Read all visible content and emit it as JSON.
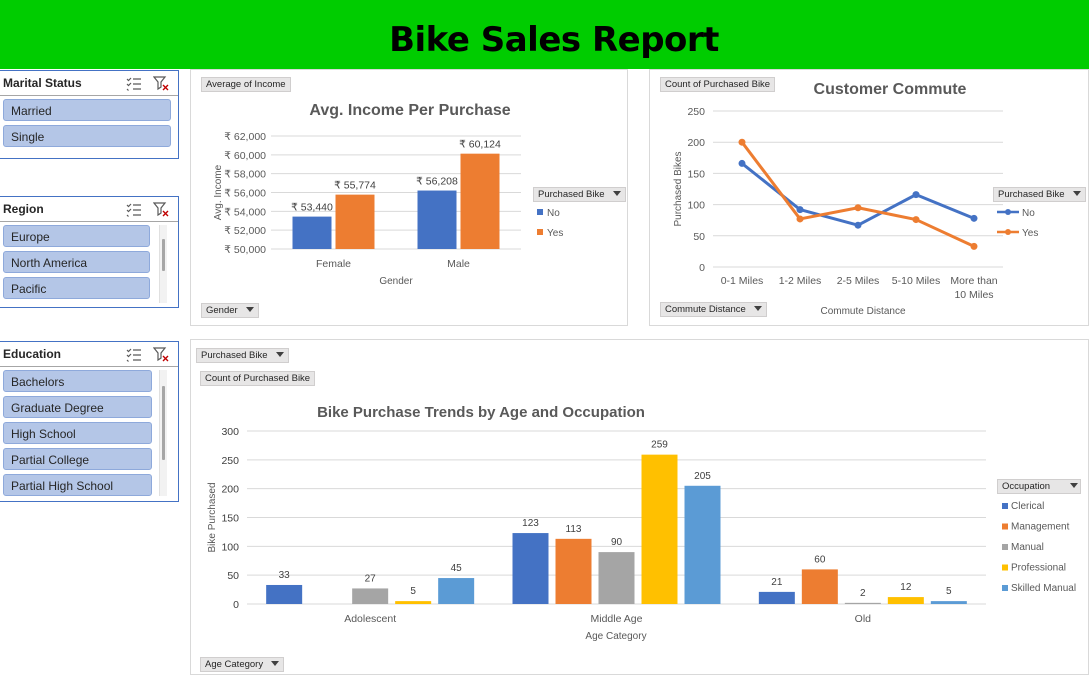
{
  "report_title": "Bike Sales Report",
  "colors": {
    "header_green": "#00cc00",
    "blue": "#4472c4",
    "orange": "#ed7d31",
    "gray": "#a5a5a5",
    "gold": "#ffc000",
    "light_blue": "#5b9bd5",
    "slicer_item": "#b4c6e7"
  },
  "slicers": {
    "marital": {
      "title": "Marital Status",
      "items": [
        "Married",
        "Single"
      ]
    },
    "region": {
      "title": "Region",
      "items": [
        "Europe",
        "North America",
        "Pacific"
      ]
    },
    "education": {
      "title": "Education",
      "items": [
        "Bachelors",
        "Graduate Degree",
        "High School",
        "Partial College",
        "Partial High School"
      ]
    },
    "icons": {
      "multiselect": "multi-select-icon",
      "clear": "clear-filter-icon"
    }
  },
  "income_panel": {
    "value_button": "Average of Income",
    "axis_button": "Gender",
    "legend_button": "Purchased Bike"
  },
  "commute_panel": {
    "value_button": "Count of Purchased Bike",
    "axis_button": "Commute Distance",
    "legend_button": "Purchased Bike"
  },
  "age_panel": {
    "filter_button": "Purchased Bike",
    "value_button": "Count of Purchased Bike",
    "axis_button": "Age Category",
    "legend_button": "Occupation"
  },
  "chart_data": [
    {
      "id": "income",
      "type": "bar",
      "title": "Avg. Income Per Purchase",
      "xlabel": "Gender",
      "ylabel": "Avg. Income",
      "categories": [
        "Female",
        "Male"
      ],
      "series": [
        {
          "name": "No",
          "values": [
            53440,
            56208
          ],
          "labels": [
            "₹ 53,440",
            "₹ 56,208"
          ]
        },
        {
          "name": "Yes",
          "values": [
            55774,
            60124
          ],
          "labels": [
            "₹ 55,774",
            "₹ 60,124"
          ]
        }
      ],
      "ylim": [
        50000,
        62000
      ],
      "yticks": [
        50000,
        52000,
        54000,
        56000,
        58000,
        60000,
        62000
      ],
      "ytick_labels": [
        "₹ 50,000",
        "₹ 52,000",
        "₹ 54,000",
        "₹ 56,000",
        "₹ 58,000",
        "₹ 60,000",
        "₹ 62,000"
      ],
      "legend": "right",
      "grid": true
    },
    {
      "id": "commute",
      "type": "line",
      "title": "Customer Commute",
      "xlabel": "Commute Distance",
      "ylabel": "Purchased Bikes",
      "categories": [
        "0-1 Miles",
        "1-2 Miles",
        "2-5 Miles",
        "5-10 Miles",
        "More than 10 Miles"
      ],
      "category_lines": [
        [
          "0-1 Miles"
        ],
        [
          "1-2 Miles"
        ],
        [
          "2-5 Miles"
        ],
        [
          "5-10 Miles"
        ],
        [
          "More than",
          "10 Miles"
        ]
      ],
      "series": [
        {
          "name": "No",
          "values": [
            166,
            92,
            67,
            116,
            78
          ]
        },
        {
          "name": "Yes",
          "values": [
            200,
            77,
            95,
            76,
            33
          ]
        }
      ],
      "ylim": [
        0,
        250
      ],
      "yticks": [
        0,
        50,
        100,
        150,
        200,
        250
      ],
      "legend": "right",
      "grid": true
    },
    {
      "id": "age",
      "type": "bar",
      "title": "Bike Purchase Trends by Age and Occupation",
      "xlabel": "Age Category",
      "ylabel": "Bike Purchased",
      "categories": [
        "Adolescent",
        "Middle Age",
        "Old"
      ],
      "series": [
        {
          "name": "Clerical",
          "values": [
            33,
            123,
            21
          ]
        },
        {
          "name": "Management",
          "values": [
            null,
            113,
            60
          ]
        },
        {
          "name": "Manual",
          "values": [
            27,
            90,
            2
          ]
        },
        {
          "name": "Professional",
          "values": [
            5,
            259,
            12
          ]
        },
        {
          "name": "Skilled Manual",
          "values": [
            45,
            205,
            5
          ]
        }
      ],
      "ylim": [
        0,
        300
      ],
      "yticks": [
        0,
        50,
        100,
        150,
        200,
        250,
        300
      ],
      "legend": "right",
      "grid": true
    }
  ]
}
